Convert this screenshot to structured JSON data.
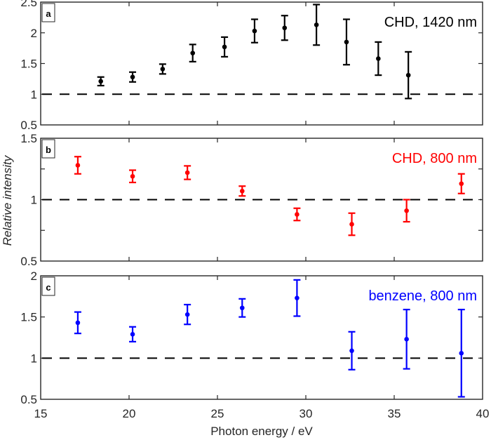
{
  "chart_data": [
    {
      "type": "scatter",
      "panel_label": "a",
      "annotation": "CHD, 1420 nm",
      "color": "#000000",
      "ylim": [
        0.5,
        2.5
      ],
      "yticks": [
        "0.5",
        "1",
        "1.5",
        "2",
        "2.5"
      ],
      "ytick_values": [
        0.5,
        1,
        1.5,
        2,
        2.5
      ],
      "reference_line": 1,
      "x": [
        18.4,
        20.2,
        21.9,
        23.6,
        25.4,
        27.1,
        28.8,
        30.6,
        32.3,
        34.1,
        35.8
      ],
      "y": [
        1.21,
        1.28,
        1.41,
        1.67,
        1.77,
        2.03,
        2.08,
        2.13,
        1.85,
        1.58,
        1.31
      ],
      "err": [
        0.07,
        0.08,
        0.08,
        0.14,
        0.16,
        0.19,
        0.2,
        0.33,
        0.37,
        0.27,
        0.38
      ]
    },
    {
      "type": "scatter",
      "panel_label": "b",
      "annotation": "CHD, 800 nm",
      "color": "#ff0000",
      "ylim": [
        0.5,
        1.5
      ],
      "yticks": [
        "0.5",
        "1",
        "1.5"
      ],
      "ytick_values": [
        0.5,
        1,
        1.5
      ],
      "minor_ticks": [
        0.75,
        1.25
      ],
      "reference_line": 1,
      "x": [
        17.1,
        20.2,
        23.3,
        26.4,
        29.5,
        32.6,
        35.7,
        38.8
      ],
      "y": [
        1.28,
        1.19,
        1.22,
        1.07,
        0.88,
        0.8,
        0.91,
        1.13
      ],
      "err": [
        0.07,
        0.05,
        0.055,
        0.04,
        0.05,
        0.09,
        0.09,
        0.08
      ]
    },
    {
      "type": "scatter",
      "panel_label": "c",
      "annotation": "benzene, 800 nm",
      "color": "#0000ff",
      "ylim": [
        0.5,
        2
      ],
      "yticks": [
        "0.5",
        "1",
        "1.5",
        "2"
      ],
      "ytick_values": [
        0.5,
        1,
        1.5,
        2
      ],
      "reference_line": 1,
      "x": [
        17.1,
        20.2,
        23.3,
        26.4,
        29.5,
        32.6,
        35.7,
        38.8
      ],
      "y": [
        1.43,
        1.29,
        1.53,
        1.61,
        1.73,
        1.09,
        1.23,
        1.06
      ],
      "err": [
        0.13,
        0.09,
        0.12,
        0.11,
        0.22,
        0.23,
        0.36,
        0.53
      ]
    }
  ],
  "xaxis": {
    "xlim": [
      15,
      40
    ],
    "xticks": [
      "15",
      "20",
      "25",
      "30",
      "35",
      "40"
    ],
    "xtick_values": [
      15,
      20,
      25,
      30,
      35,
      40
    ],
    "xlabel": "Photon energy / eV"
  },
  "ylabel": "Relative intensity"
}
